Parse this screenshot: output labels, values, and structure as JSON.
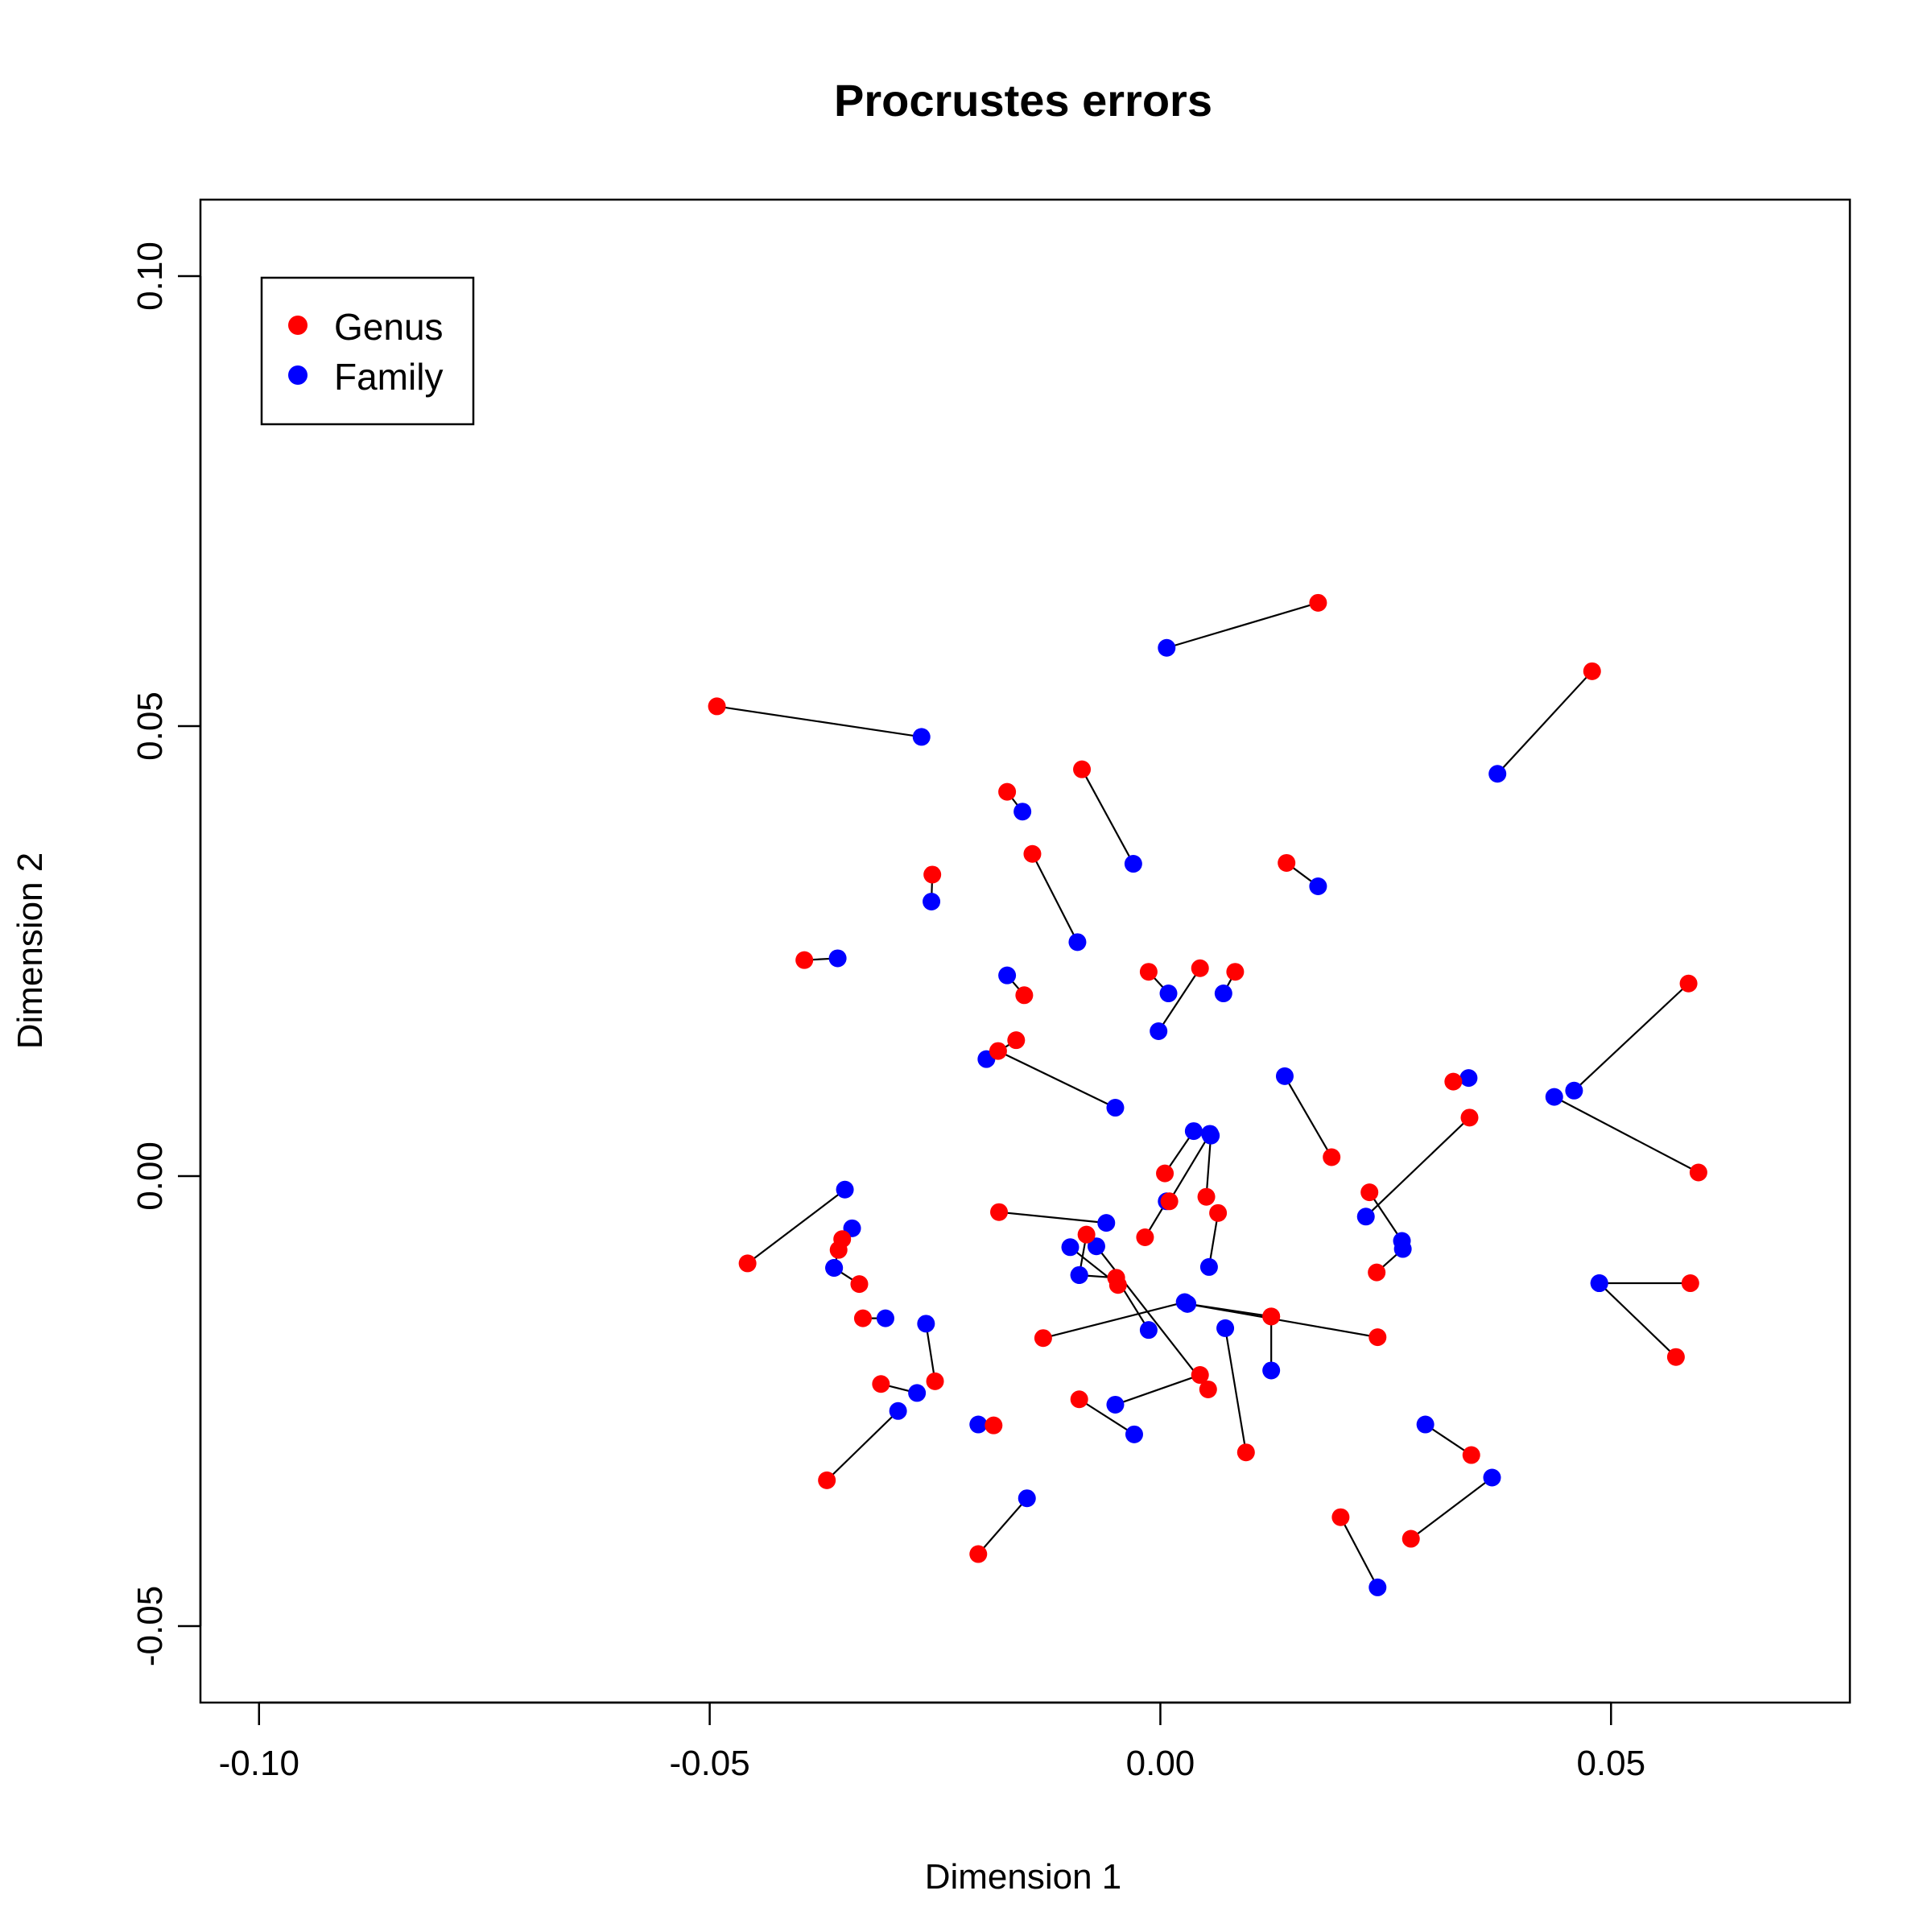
{
  "chart_data": {
    "type": "scatter",
    "title": "Procrustes errors",
    "xlabel": "Dimension 1",
    "ylabel": "Dimension 2",
    "xlim": [
      -0.1065,
      0.0765
    ],
    "ylim": [
      -0.0585,
      0.1085
    ],
    "xticks": [
      -0.1,
      -0.05,
      0.0,
      0.05
    ],
    "xtick_labels": [
      "-0.10",
      "-0.05",
      "0.00",
      "0.05"
    ],
    "yticks": [
      -0.05,
      0.0,
      0.05,
      0.1
    ],
    "ytick_labels": [
      "-0.05",
      "0.00",
      "0.05",
      "0.10"
    ],
    "grid": false,
    "legend": {
      "position": "top-left",
      "entries": [
        {
          "label": "Genus",
          "color": "#ff0000"
        },
        {
          "label": "Family",
          "color": "#0000ff"
        }
      ]
    },
    "colors": {
      "genus": "#ff0000",
      "family": "#0000ff",
      "segment": "#000000"
    },
    "pairs": [
      {
        "genus": [
          -0.0492,
          0.0522
        ],
        "family": [
          -0.0265,
          0.0488
        ]
      },
      {
        "genus": [
          0.0175,
          0.0637
        ],
        "family": [
          0.0007,
          0.0587
        ]
      },
      {
        "genus": [
          0.0479,
          0.0561
        ],
        "family": [
          0.0374,
          0.0447
        ]
      },
      {
        "genus": [
          -0.017,
          0.0427
        ],
        "family": [
          -0.0153,
          0.0405
        ]
      },
      {
        "genus": [
          -0.0087,
          0.0452
        ],
        "family": [
          -0.003,
          0.0347
        ]
      },
      {
        "genus": [
          -0.0142,
          0.0358
        ],
        "family": [
          -0.0092,
          0.026
        ]
      },
      {
        "genus": [
          -0.0253,
          0.0335
        ],
        "family": [
          -0.0254,
          0.0305
        ]
      },
      {
        "genus": [
          -0.0395,
          0.024
        ],
        "family": [
          -0.0358,
          0.0242
        ]
      },
      {
        "genus": [
          0.014,
          0.0348
        ],
        "family": [
          0.0175,
          0.0322
        ]
      },
      {
        "genus": [
          -0.0013,
          0.0227
        ],
        "family": [
          0.0009,
          0.0203
        ]
      },
      {
        "genus": [
          0.0044,
          0.0231
        ],
        "family": [
          -0.0002,
          0.0161
        ]
      },
      {
        "genus": [
          0.0083,
          0.0227
        ],
        "family": [
          0.007,
          0.0203
        ]
      },
      {
        "genus": [
          -0.0151,
          0.0201
        ],
        "family": [
          -0.017,
          0.0223
        ]
      },
      {
        "genus": [
          0.0586,
          0.0214
        ],
        "family": [
          0.0459,
          0.0095
        ]
      },
      {
        "genus": [
          -0.016,
          0.0151
        ],
        "family": [
          -0.0193,
          0.013
        ]
      },
      {
        "genus": [
          -0.018,
          0.0139
        ],
        "family": [
          -0.005,
          0.0076
        ]
      },
      {
        "genus": [
          0.0325,
          0.0105
        ],
        "family": [
          0.0342,
          0.0109
        ]
      },
      {
        "genus": [
          0.019,
          0.0021
        ],
        "family": [
          0.0138,
          0.0111
        ]
      },
      {
        "genus": [
          0.0343,
          0.0065
        ],
        "family": [
          0.0228,
          -0.0045
        ]
      },
      {
        "genus": [
          0.0597,
          0.0004
        ],
        "family": [
          0.0437,
          0.0088
        ]
      },
      {
        "genus": [
          0.0005,
          0.0003
        ],
        "family": [
          0.0037,
          0.005
        ]
      },
      {
        "genus": [
          0.0051,
          -0.0023
        ],
        "family": [
          0.0056,
          0.0045
        ]
      },
      {
        "genus": [
          0.001,
          -0.0028
        ],
        "family": [
          0.0055,
          0.0047
        ]
      },
      {
        "genus": [
          0.0232,
          -0.0018
        ],
        "family": [
          0.0268,
          -0.0072
        ]
      },
      {
        "genus": [
          0.024,
          -0.0107
        ],
        "family": [
          0.0269,
          -0.0081
        ]
      },
      {
        "genus": [
          -0.0458,
          -0.0097
        ],
        "family": [
          -0.035,
          -0.0015
        ]
      },
      {
        "genus": [
          -0.0353,
          -0.007
        ],
        "family": [
          -0.0342,
          -0.0058
        ]
      },
      {
        "genus": [
          -0.0357,
          -0.0082
        ],
        "family": [
          -0.0362,
          -0.0102
        ]
      },
      {
        "genus": [
          -0.0334,
          -0.012
        ],
        "family": [
          -0.0362,
          -0.0102
        ]
      },
      {
        "genus": [
          -0.0179,
          -0.004
        ],
        "family": [
          -0.006,
          -0.0052
        ]
      },
      {
        "genus": [
          -0.0017,
          -0.0068
        ],
        "family": [
          0.0007,
          -0.0028
        ]
      },
      {
        "genus": [
          0.0064,
          -0.0041
        ],
        "family": [
          0.0054,
          -0.0101
        ]
      },
      {
        "genus": [
          -0.0082,
          -0.0065
        ],
        "family": [
          -0.009,
          -0.011
        ]
      },
      {
        "genus": [
          -0.0049,
          -0.0113
        ],
        "family": [
          -0.009,
          -0.011
        ]
      },
      {
        "genus": [
          -0.0049,
          -0.0113
        ],
        "family": [
          -0.0013,
          -0.0171
        ]
      },
      {
        "genus": [
          -0.0047,
          -0.0121
        ],
        "family": [
          -0.01,
          -0.0079
        ]
      },
      {
        "genus": [
          0.0588,
          -0.0119
        ],
        "family": [
          0.0487,
          -0.0119
        ]
      },
      {
        "genus": [
          0.0572,
          -0.0201
        ],
        "family": [
          0.0487,
          -0.0119
        ]
      },
      {
        "genus": [
          -0.033,
          -0.0158
        ],
        "family": [
          -0.0305,
          -0.0158
        ]
      },
      {
        "genus": [
          -0.013,
          -0.018
        ],
        "family": [
          0.0027,
          -0.014
        ]
      },
      {
        "genus": [
          0.0123,
          -0.0156
        ],
        "family": [
          0.003,
          -0.0142
        ]
      },
      {
        "genus": [
          0.0123,
          -0.0156
        ],
        "family": [
          0.0123,
          -0.0216
        ]
      },
      {
        "genus": [
          0.0241,
          -0.0179
        ],
        "family": [
          0.003,
          -0.0142
        ]
      },
      {
        "genus": [
          0.0044,
          -0.0221
        ],
        "family": [
          -0.005,
          -0.0254
        ]
      },
      {
        "genus": [
          0.0053,
          -0.0237
        ],
        "family": [
          -0.0071,
          -0.0078
        ]
      },
      {
        "genus": [
          0.0095,
          -0.0307
        ],
        "family": [
          0.0072,
          -0.0169
        ]
      },
      {
        "genus": [
          -0.031,
          -0.0231
        ],
        "family": [
          -0.027,
          -0.0241
        ]
      },
      {
        "genus": [
          -0.025,
          -0.0228
        ],
        "family": [
          -0.026,
          -0.0164
        ]
      },
      {
        "genus": [
          -0.009,
          -0.0248
        ],
        "family": [
          -0.0029,
          -0.0287
        ]
      },
      {
        "genus": [
          -0.037,
          -0.0338
        ],
        "family": [
          -0.0291,
          -0.0261
        ]
      },
      {
        "genus": [
          -0.0185,
          -0.0277
        ],
        "family": [
          -0.0202,
          -0.0276
        ]
      },
      {
        "genus": [
          0.0345,
          -0.031
        ],
        "family": [
          0.0294,
          -0.0276
        ]
      },
      {
        "genus": [
          0.0278,
          -0.0403
        ],
        "family": [
          0.0368,
          -0.0335
        ]
      },
      {
        "genus": [
          0.02,
          -0.0379
        ],
        "family": [
          0.0241,
          -0.0457
        ]
      },
      {
        "genus": [
          -0.0202,
          -0.042
        ],
        "family": [
          -0.0148,
          -0.0358
        ]
      }
    ]
  }
}
